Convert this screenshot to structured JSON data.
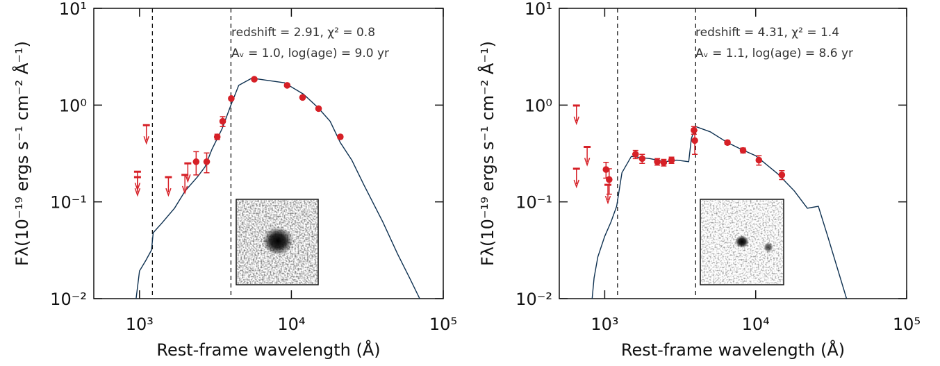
{
  "chart_data": [
    {
      "type": "scatter",
      "xscale": "log",
      "yscale": "log",
      "xlim": [
        500,
        100000
      ],
      "ylim": [
        0.01,
        10
      ],
      "xticks": [
        {
          "value": 1000,
          "label": "10³"
        },
        {
          "value": 10000,
          "label": "10⁴"
        },
        {
          "value": 100000,
          "label": "10⁵"
        }
      ],
      "yticks": [
        {
          "value": 0.01,
          "label": "10⁻²"
        },
        {
          "value": 0.1,
          "label": "10⁻¹"
        },
        {
          "value": 1,
          "label": "10⁰"
        },
        {
          "value": 10,
          "label": "10¹"
        }
      ],
      "x_label": "Rest-frame wavelength (Å)",
      "y_label": "Fλ(10⁻¹⁹ ergs s⁻¹ cm⁻² Å⁻¹)",
      "annotations": [
        "redshift = 2.91,    χ² = 0.8",
        "Aᵥ = 1.0,  log(age) = 9.0 yr"
      ],
      "vlines": [
        1216,
        4000
      ],
      "model": {
        "color": "#0d3050",
        "x": [
          950,
          1000,
          1100,
          1200,
          1230,
          1400,
          1700,
          2000,
          2400,
          2700,
          3000,
          3500,
          4000,
          4500,
          5500,
          7000,
          9000,
          12000,
          15000,
          18000,
          21000,
          25000,
          30000,
          40000,
          50000,
          60000,
          70000
        ],
        "values": [
          0.01,
          0.0193,
          0.0248,
          0.0318,
          0.048,
          0.06,
          0.086,
          0.13,
          0.18,
          0.23,
          0.35,
          0.57,
          1.0,
          1.6,
          1.9,
          1.8,
          1.7,
          1.3,
          0.94,
          0.68,
          0.41,
          0.27,
          0.15,
          0.062,
          0.029,
          0.0164,
          0.01
        ]
      },
      "detections": {
        "color": "#d62027",
        "x": [
          2360,
          2770,
          3250,
          3530,
          4020,
          5700,
          9380,
          11850,
          15100,
          21000
        ],
        "values": [
          0.26,
          0.26,
          0.47,
          0.68,
          1.17,
          1.85,
          1.6,
          1.2,
          0.92,
          0.47
        ],
        "errors": [
          0.07,
          0.06,
          0.03,
          0.08,
          0.04,
          0.06,
          0.04,
          0.03,
          0.03,
          0.02
        ]
      },
      "upper_limits": {
        "color": "#d62027",
        "x": [
          970,
          970,
          1110,
          1550,
          1990,
          2080
        ],
        "values": [
          0.205,
          0.18,
          0.62,
          0.18,
          0.19,
          0.25
        ]
      }
    },
    {
      "type": "scatter",
      "xscale": "log",
      "yscale": "log",
      "xlim": [
        500,
        100000
      ],
      "ylim": [
        0.01,
        10
      ],
      "xticks": [
        {
          "value": 1000,
          "label": "10³"
        },
        {
          "value": 10000,
          "label": "10⁴"
        },
        {
          "value": 100000,
          "label": "10⁵"
        }
      ],
      "yticks": [
        {
          "value": 0.01,
          "label": "10⁻²"
        },
        {
          "value": 0.1,
          "label": "10⁻¹"
        },
        {
          "value": 1,
          "label": "10⁰"
        },
        {
          "value": 10,
          "label": "10¹"
        }
      ],
      "x_label": "Rest-frame wavelength (Å)",
      "y_label": "Fλ(10⁻¹⁹ ergs s⁻¹ cm⁻² Å⁻¹)",
      "annotations": [
        "redshift = 4.31,    χ² = 1.4",
        "Aᵥ = 1.1,  log(age) = 8.6 yr"
      ],
      "vlines": [
        1216,
        4000
      ],
      "model": {
        "color": "#0d3050",
        "x": [
          825,
          850,
          900,
          1000,
          1100,
          1200,
          1300,
          1500,
          2000,
          2500,
          3000,
          3600,
          3750,
          4000,
          5000,
          6500,
          8000,
          10000,
          14000,
          18000,
          22000,
          26000,
          30000,
          40000
        ],
        "values": [
          0.01,
          0.0164,
          0.027,
          0.044,
          0.062,
          0.09,
          0.2,
          0.295,
          0.28,
          0.26,
          0.27,
          0.26,
          0.45,
          0.6,
          0.53,
          0.41,
          0.35,
          0.3,
          0.195,
          0.13,
          0.086,
          0.09,
          0.044,
          0.01
        ]
      },
      "detections": {
        "color": "#d62027",
        "x": [
          1020,
          1070,
          1600,
          1770,
          2230,
          2460,
          2770,
          3900,
          3950,
          6500,
          8250,
          10500,
          14900
        ],
        "values": [
          0.216,
          0.17,
          0.31,
          0.28,
          0.26,
          0.255,
          0.27,
          0.55,
          0.43,
          0.41,
          0.34,
          0.27,
          0.19
        ],
        "errors": [
          0.04,
          0.05,
          0.03,
          0.03,
          0.02,
          0.02,
          0.02,
          0.05,
          0.12,
          0.02,
          0.02,
          0.03,
          0.02
        ]
      },
      "upper_limits": {
        "color": "#d62027",
        "x": [
          650,
          650,
          765,
          1050
        ],
        "values": [
          0.99,
          0.22,
          0.37,
          0.15
        ]
      }
    }
  ]
}
